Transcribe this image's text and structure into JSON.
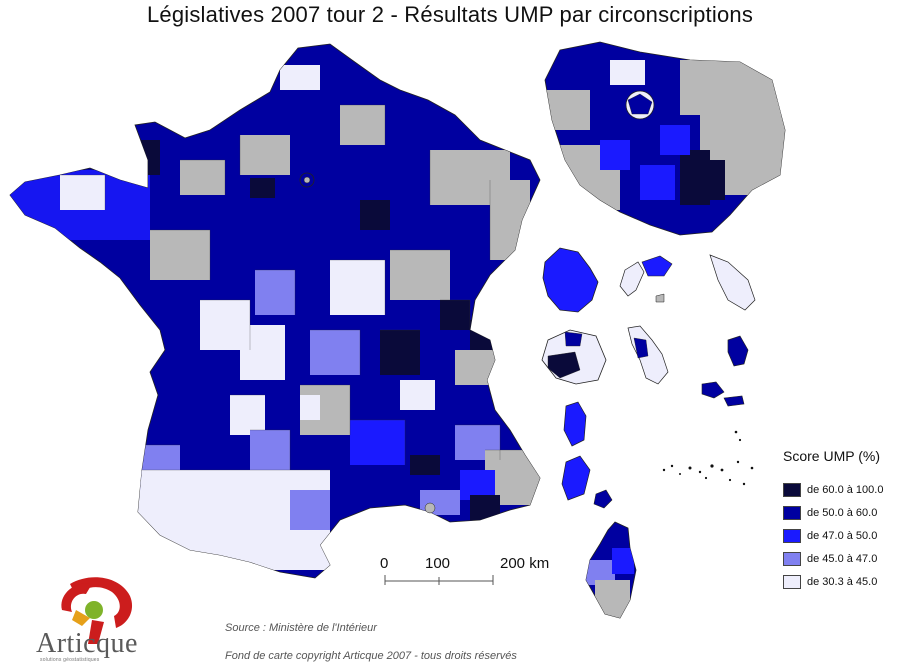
{
  "title": "Législatives 2007 tour 2 - Résultats UMP par circonscriptions",
  "legend": {
    "title": "Score UMP (%)",
    "classes": [
      {
        "label": "de 60.0 à 100.0",
        "color": "#0a0a3a"
      },
      {
        "label": "de 50.0 à 60.0",
        "color": "#0000a0"
      },
      {
        "label": "de 47.0 à 50.0",
        "color": "#1a1aff"
      },
      {
        "label": "de 45.0 à 47.0",
        "color": "#8080f0"
      },
      {
        "label": "de 30.3 à 45.0",
        "color": "#eeeefc"
      }
    ],
    "no_data_color": "#b8b8b8"
  },
  "scale": {
    "ticks": [
      "0",
      "100",
      "200 km"
    ]
  },
  "source": "Source : Ministère de l'Intérieur",
  "copyright": "Fond de carte copyright Articque 2007 - tous droits réservés",
  "logo": {
    "name": "Articque",
    "tagline": "solutions géostatistiques"
  }
}
